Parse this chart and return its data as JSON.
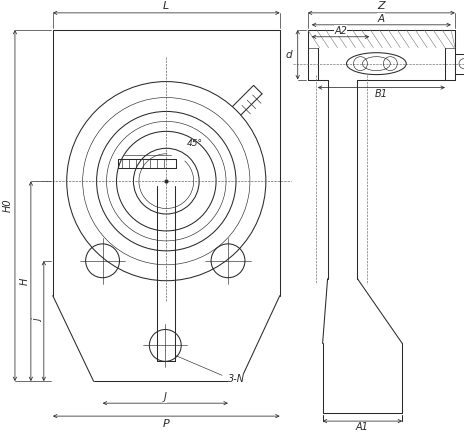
{
  "bg_color": "#ffffff",
  "line_color": "#2a2a2a",
  "fig_width": 4.65,
  "fig_height": 4.43,
  "dpi": 100,
  "labels": {
    "L": "L",
    "H0": "H0",
    "H": "H",
    "J": "J",
    "P": "P",
    "j": "j",
    "Z": "Z",
    "A": "A",
    "A2": "A2",
    "A1": "A1",
    "B1": "B1",
    "d": "d",
    "angle": "45°",
    "bolt": "3-N"
  }
}
